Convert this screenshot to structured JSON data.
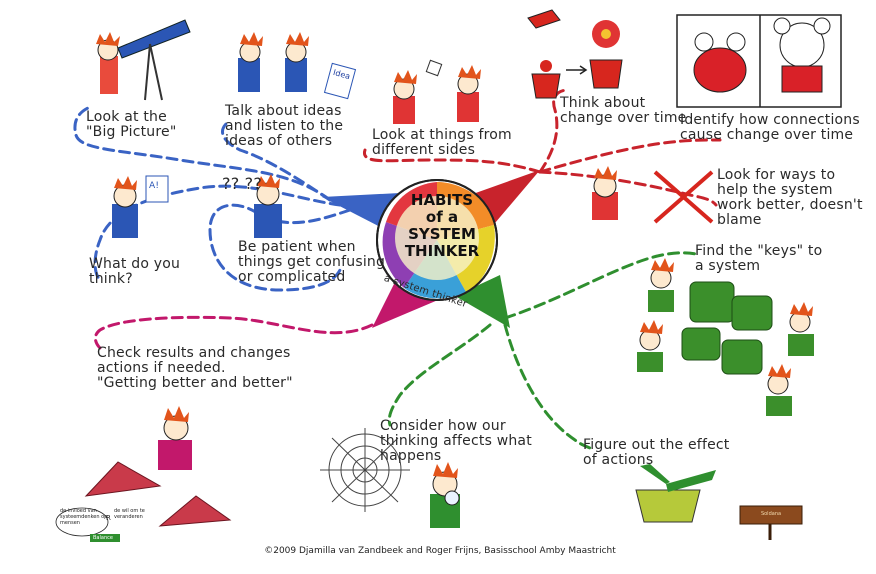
{
  "center": {
    "title": "HABITS\nof a\nSYSTEM\nTHINKER",
    "arc_text": "a system thinker"
  },
  "habits": [
    {
      "id": "big-picture",
      "text": "Look at the\n\"Big Picture\""
    },
    {
      "id": "talk-listen",
      "text": "Talk about ideas\nand listen to the\nideas of others"
    },
    {
      "id": "different-sides",
      "text": "Look at things from\ndifferent sides"
    },
    {
      "id": "change-over-time",
      "text": "Think about\nchange over time"
    },
    {
      "id": "connections",
      "text": "Identify how connections\ncause change over time"
    },
    {
      "id": "help-system",
      "text": "Look for ways to\nhelp the system\nwork better, doesn't\nblame"
    },
    {
      "id": "what-think",
      "text": "What do you\nthink?"
    },
    {
      "id": "be-patient",
      "text": "Be patient when\nthings get confusing\nor complicated"
    },
    {
      "id": "keys",
      "text": "Find the \"keys\" to\na system"
    },
    {
      "id": "check-results",
      "text": "Check results and changes\nactions if needed.\n\"Getting better and better\""
    },
    {
      "id": "thinking-affects",
      "text": "Consider how our\nthinking affects what\nhappens"
    },
    {
      "id": "effect-actions",
      "text": "Figure out the effect\nof actions"
    }
  ],
  "doodles": {
    "question_marks": "?? ??",
    "paper_mark": "A!",
    "idea_sheet": "Idea",
    "loop_labels": {
      "left": "de invloed van\nsysteemdenken op\nmensen",
      "r_mark": "R",
      "right": "de wil om te\nveranderen",
      "badge": "Balance"
    },
    "sign": "Soldana"
  },
  "caption": "©2009 Djamilla van Zandbeek and Roger Frijns, Basisschool Amby Maastricht",
  "colors": {
    "blue": "#3a63c4",
    "red": "#c8232c",
    "green": "#2f8f2f",
    "magenta": "#c2186b",
    "kid_red": "#e03434",
    "hair": "#e2541b",
    "puzzle": "#3b8f2b"
  }
}
